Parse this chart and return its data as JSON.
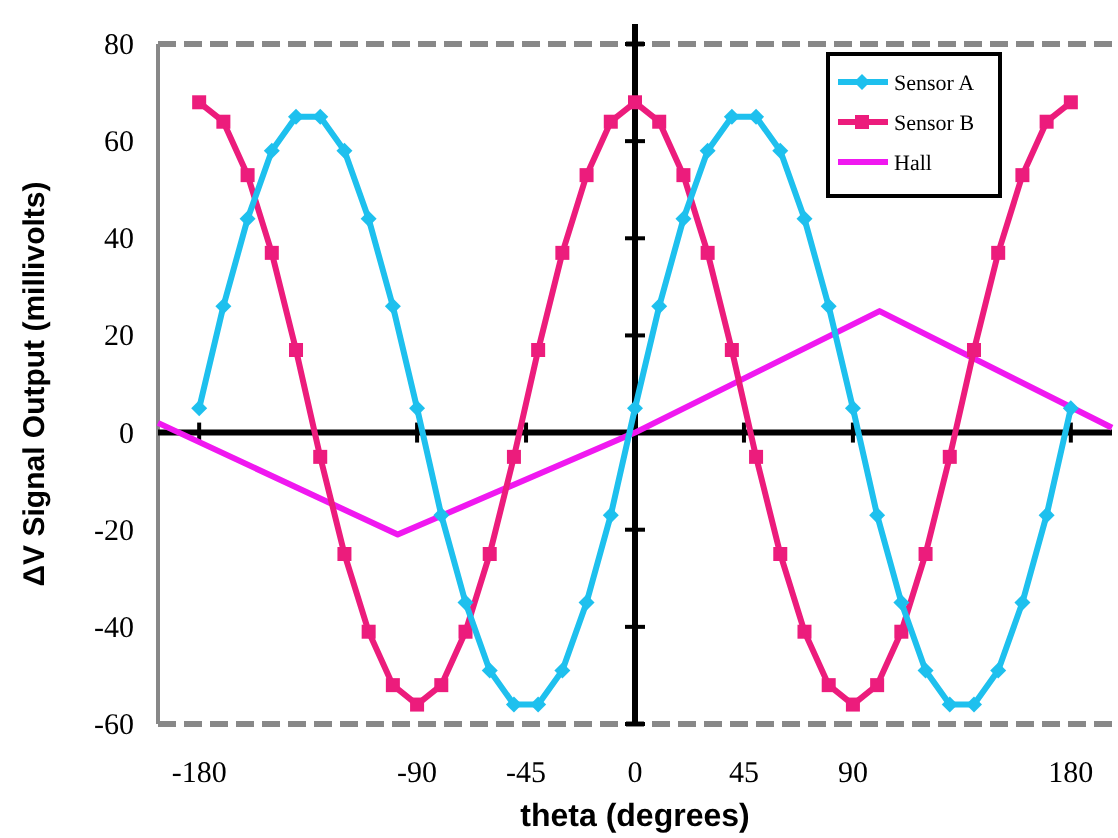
{
  "chart_data": {
    "type": "line",
    "xlabel": "theta (degrees)",
    "ylabel": "ΔV Signal Output (millivolts)",
    "xlim": [
      -197,
      197
    ],
    "ylim": [
      -60,
      80
    ],
    "xticks": [
      -180,
      -90,
      -45,
      0,
      45,
      90,
      180
    ],
    "yticks": [
      -60,
      -40,
      -20,
      0,
      20,
      40,
      60,
      80
    ],
    "legend": "top right",
    "series": [
      {
        "name": "Sensor A",
        "color": "#1ec0ee",
        "marker": "diamond",
        "x": [
          -180,
          -170,
          -160,
          -150,
          -140,
          -130,
          -120,
          -110,
          -100,
          -90,
          -80,
          -70,
          -60,
          -50,
          -40,
          -30,
          -20,
          -10,
          0,
          10,
          20,
          30,
          40,
          50,
          60,
          70,
          80,
          90,
          100,
          110,
          120,
          130,
          140,
          150,
          160,
          170,
          180
        ],
        "values": [
          5,
          26,
          44,
          58,
          65,
          65,
          58,
          44,
          26,
          5,
          -17,
          -35,
          -49,
          -56,
          -56,
          -49,
          -35,
          -17,
          5,
          26,
          44,
          58,
          65,
          65,
          58,
          44,
          26,
          5,
          -17,
          -35,
          -49,
          -56,
          -56,
          -49,
          -35,
          -17,
          5
        ]
      },
      {
        "name": "Sensor B",
        "color": "#ec1c7c",
        "marker": "square",
        "x": [
          -180,
          -170,
          -160,
          -150,
          -140,
          -130,
          -120,
          -110,
          -100,
          -90,
          -80,
          -70,
          -60,
          -50,
          -40,
          -30,
          -20,
          -10,
          0,
          10,
          20,
          30,
          40,
          50,
          60,
          70,
          80,
          90,
          100,
          110,
          120,
          130,
          140,
          150,
          160,
          170,
          180
        ],
        "values": [
          68,
          64,
          53,
          37,
          17,
          -5,
          -25,
          -41,
          -52,
          -56,
          -52,
          -41,
          -25,
          -5,
          17,
          37,
          53,
          64,
          68,
          64,
          53,
          37,
          17,
          -5,
          -25,
          -41,
          -52,
          -56,
          -52,
          -41,
          -25,
          -5,
          17,
          37,
          53,
          64,
          68
        ]
      },
      {
        "name": "Hall",
        "color": "#f018f0",
        "marker": "none",
        "x": [
          -197,
          -98,
          0,
          101,
          197
        ],
        "values": [
          2,
          -21,
          0,
          25,
          1
        ]
      }
    ]
  }
}
